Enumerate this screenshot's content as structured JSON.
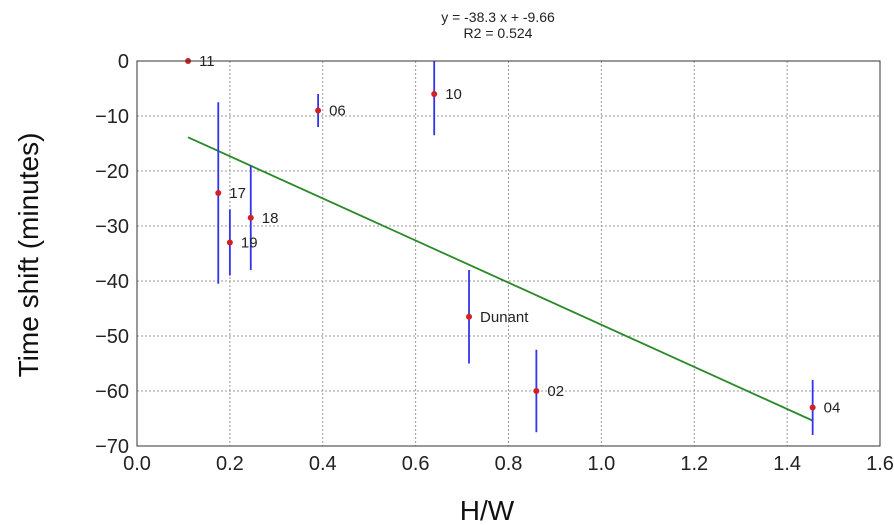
{
  "chart_data": {
    "type": "scatter",
    "title_lines": [
      "y = -38.3 x + -9.66",
      "R2 = 0.524"
    ],
    "xlabel": "H/W",
    "ylabel": "Time shift (minutes)",
    "xlim": [
      0.0,
      1.6
    ],
    "ylim": [
      -70,
      0
    ],
    "xticks": [
      "0.0",
      "0.2",
      "0.4",
      "0.6",
      "0.8",
      "1.0",
      "1.2",
      "1.4",
      "1.6"
    ],
    "yticks": [
      "0",
      "−10",
      "−20",
      "−30",
      "−40",
      "−50",
      "−60",
      "−70"
    ],
    "grid": true,
    "points": [
      {
        "label": "11",
        "x": 0.11,
        "y": 0,
        "err": 0
      },
      {
        "label": "06",
        "x": 0.39,
        "y": -9,
        "err": 3
      },
      {
        "label": "10",
        "x": 0.64,
        "y": -6,
        "err": 7.5
      },
      {
        "label": "17",
        "x": 0.175,
        "y": -24,
        "err": 16.5
      },
      {
        "label": "18",
        "x": 0.245,
        "y": -28.5,
        "err": 9.5
      },
      {
        "label": "19",
        "x": 0.2,
        "y": -33,
        "err": 6
      },
      {
        "label": "Dunant",
        "x": 0.715,
        "y": -46.5,
        "err": 8.5
      },
      {
        "label": "02",
        "x": 0.86,
        "y": -60,
        "err": 7.5
      },
      {
        "label": "04",
        "x": 1.455,
        "y": -63,
        "err": 5
      }
    ],
    "fit_line": {
      "slope": -38.3,
      "intercept": -9.66,
      "x_range": [
        0.11,
        1.455
      ]
    },
    "colors": {
      "point": "#d32020",
      "errorbar": "#3333ee",
      "fit": "#2a8a2a",
      "grid": "#999999"
    }
  }
}
